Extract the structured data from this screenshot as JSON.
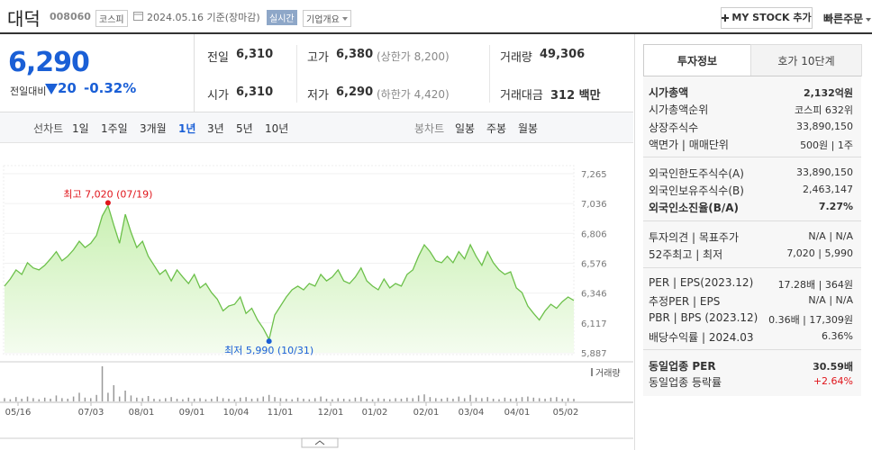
{
  "header": {
    "name": "대덕",
    "code": "008060",
    "market": "코스피",
    "date": "2024.05.16 기준(장마감)",
    "realtime": "실시간",
    "overview": "기업개요",
    "mystock": "MY STOCK 추가",
    "quick_order": "빠른주문"
  },
  "price": {
    "current": "6,290",
    "change_label": "전일대비",
    "change": "20",
    "change_rate": "-0.32%"
  },
  "summary": {
    "rows": [
      [
        {
          "label": "전일",
          "value": "6,310"
        },
        {
          "label": "고가",
          "value": "6,380",
          "note": "(상한가 8,200)"
        },
        {
          "label": "거래량",
          "value": "49,306"
        }
      ],
      [
        {
          "label": "시가",
          "value": "6,310"
        },
        {
          "label": "저가",
          "value": "6,290",
          "note": "(하한가 4,420)"
        },
        {
          "label": "거래대금",
          "value": "312 백만"
        }
      ]
    ]
  },
  "chart_tabs": {
    "line": "선차트",
    "line_periods": [
      "1일",
      "1주일",
      "3개월",
      "1년",
      "3년",
      "5년",
      "10년"
    ],
    "selected": "1년",
    "candle": "봉차트",
    "candle_periods": [
      "일봉",
      "주봉",
      "월봉"
    ]
  },
  "chart": {
    "type": "area",
    "color": "#6cc04a",
    "values": [
      6400,
      6455,
      6525,
      6490,
      6580,
      6540,
      6525,
      6560,
      6610,
      6665,
      6595,
      6630,
      6680,
      6745,
      6697,
      6730,
      6790,
      6940,
      7020,
      6870,
      6730,
      6953,
      6815,
      6697,
      6745,
      6630,
      6560,
      6490,
      6525,
      6440,
      6525,
      6470,
      6420,
      6490,
      6386,
      6420,
      6350,
      6300,
      6210,
      6247,
      6260,
      6316,
      6190,
      6230,
      6140,
      6075,
      5990,
      6178,
      6247,
      6316,
      6372,
      6400,
      6372,
      6420,
      6400,
      6490,
      6440,
      6470,
      6525,
      6440,
      6420,
      6470,
      6540,
      6440,
      6400,
      6372,
      6455,
      6386,
      6420,
      6400,
      6490,
      6525,
      6630,
      6718,
      6665,
      6595,
      6580,
      6630,
      6580,
      6665,
      6610,
      6718,
      6630,
      6560,
      6665,
      6580,
      6525,
      6490,
      6510,
      6386,
      6350,
      6247,
      6190,
      6140,
      6210,
      6260,
      6230,
      6280,
      6316,
      6290
    ],
    "ylim": [
      5887,
      7265
    ],
    "yticks": [
      {
        "value": 7265,
        "label": "7,265"
      },
      {
        "value": 7036,
        "label": "7,036"
      },
      {
        "value": 6806,
        "label": "6,806"
      },
      {
        "value": 6576,
        "label": "6,576"
      },
      {
        "value": 6346,
        "label": "6,346"
      },
      {
        "value": 6117,
        "label": "6,117"
      },
      {
        "value": 5887,
        "label": "5,887"
      }
    ],
    "high_label": "최고 7,020 (07/19)",
    "low_label": "최저 5,990 (10/31)",
    "volume_label": "거래량",
    "volume_color": "#999999",
    "volume_ylim": [
      0,
      700000
    ],
    "volume": [
      60000,
      40000,
      80000,
      50000,
      90000,
      60000,
      40000,
      70000,
      50000,
      110000,
      60000,
      50000,
      90000,
      160000,
      70000,
      60000,
      120000,
      650000,
      160000,
      300000,
      90000,
      200000,
      110000,
      70000,
      60000,
      100000,
      50000,
      40000,
      60000,
      80000,
      50000,
      40000,
      70000,
      50000,
      60000,
      40000,
      50000,
      90000,
      60000,
      50000,
      40000,
      70000,
      80000,
      50000,
      60000,
      90000,
      120000,
      80000,
      60000,
      50000,
      40000,
      70000,
      50000,
      40000,
      60000,
      90000,
      50000,
      40000,
      60000,
      50000,
      40000,
      70000,
      80000,
      50000,
      40000,
      60000,
      50000,
      40000,
      60000,
      50000,
      70000,
      60000,
      110000,
      130000,
      80000,
      60000,
      50000,
      70000,
      50000,
      90000,
      60000,
      120000,
      70000,
      60000,
      80000,
      50000,
      40000,
      70000,
      50000,
      60000,
      80000,
      90000,
      70000,
      60000,
      50000,
      70000,
      80000,
      50000,
      60000,
      49306
    ],
    "xlabels": [
      "05/16",
      "07/03",
      "08/01",
      "09/01",
      "10/04",
      "11/01",
      "12/01",
      "01/02",
      "02/01",
      "03/04",
      "04/01",
      "05/02"
    ]
  },
  "invest": {
    "tabs": [
      "투자정보",
      "호가 10단계"
    ],
    "sections": [
      [
        {
          "label": "시가총액",
          "value": "2,132억원",
          "strong": true
        },
        {
          "label": "시가총액순위",
          "value": "코스피 632위"
        },
        {
          "label": "상장주식수",
          "value": "33,890,150"
        },
        {
          "label": "액면가 | 매매단위",
          "value": "500원 | 1주"
        }
      ],
      [
        {
          "label": "외국인한도주식수(A)",
          "value": "33,890,150"
        },
        {
          "label": "외국인보유주식수(B)",
          "value": "2,463,147"
        },
        {
          "label": "외국인소진율(B/A)",
          "value": "7.27%",
          "strong": true
        }
      ],
      [
        {
          "label": "투자의견 | 목표주가",
          "value": "N/A | N/A"
        },
        {
          "label": "52주최고 | 최저",
          "value": "7,020 | 5,990"
        }
      ],
      [
        {
          "label": "PER | EPS(2023.12)",
          "value": "17.28배 | 364원"
        },
        {
          "label": "추정PER | EPS",
          "value": "N/A | N/A"
        },
        {
          "label": "PBR | BPS (2023.12)",
          "value": "0.36배 | 17,309원"
        },
        {
          "label": "배당수익률 | 2024.03",
          "value": "6.36%"
        }
      ],
      [
        {
          "label": "동일업종 PER",
          "value": "30.59배",
          "strong": true
        },
        {
          "label": "동일업종 등락률",
          "value": "+2.64%",
          "rise": true
        }
      ]
    ]
  }
}
